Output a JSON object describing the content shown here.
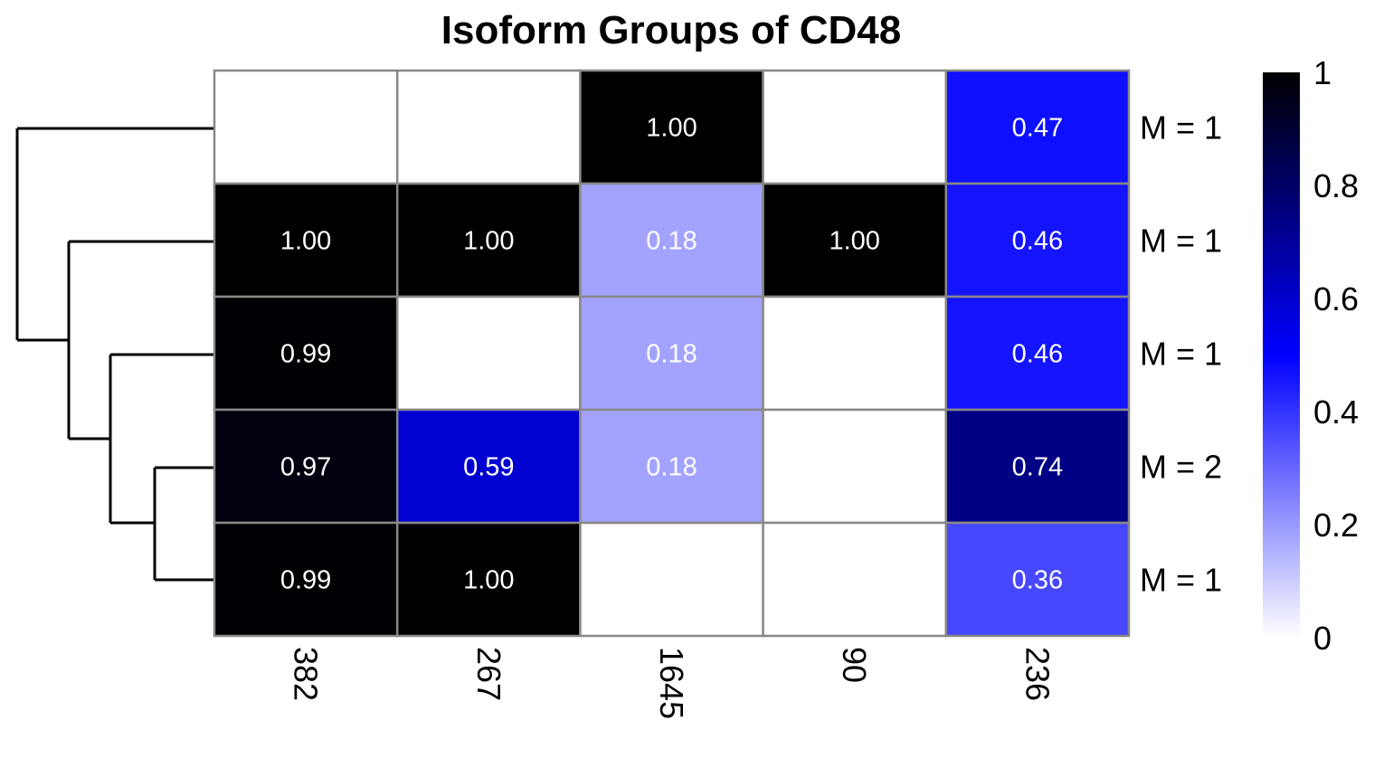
{
  "chart_data": {
    "type": "heatmap",
    "title": "Isoform Groups of CD48",
    "columns": [
      "382",
      "267",
      "1645",
      "90",
      "236"
    ],
    "rows": [
      {
        "label": "M = 1",
        "values": [
          null,
          null,
          1.0,
          null,
          0.47
        ]
      },
      {
        "label": "M = 1",
        "values": [
          1.0,
          1.0,
          0.18,
          1.0,
          0.46
        ]
      },
      {
        "label": "M = 1",
        "values": [
          0.99,
          null,
          0.18,
          null,
          0.46
        ]
      },
      {
        "label": "M = 2",
        "values": [
          0.97,
          0.59,
          0.18,
          null,
          0.74
        ]
      },
      {
        "label": "M = 1",
        "values": [
          0.99,
          1.0,
          null,
          null,
          0.36
        ]
      }
    ],
    "color_scale": {
      "range": [
        0,
        1
      ],
      "stops": [
        "#ffffff",
        "#0000ff",
        "#000000"
      ],
      "ticks": [
        "0",
        "0.2",
        "0.4",
        "0.6",
        "0.8",
        "1"
      ]
    },
    "dendrogram": "rows",
    "grid_color": "#888888"
  }
}
